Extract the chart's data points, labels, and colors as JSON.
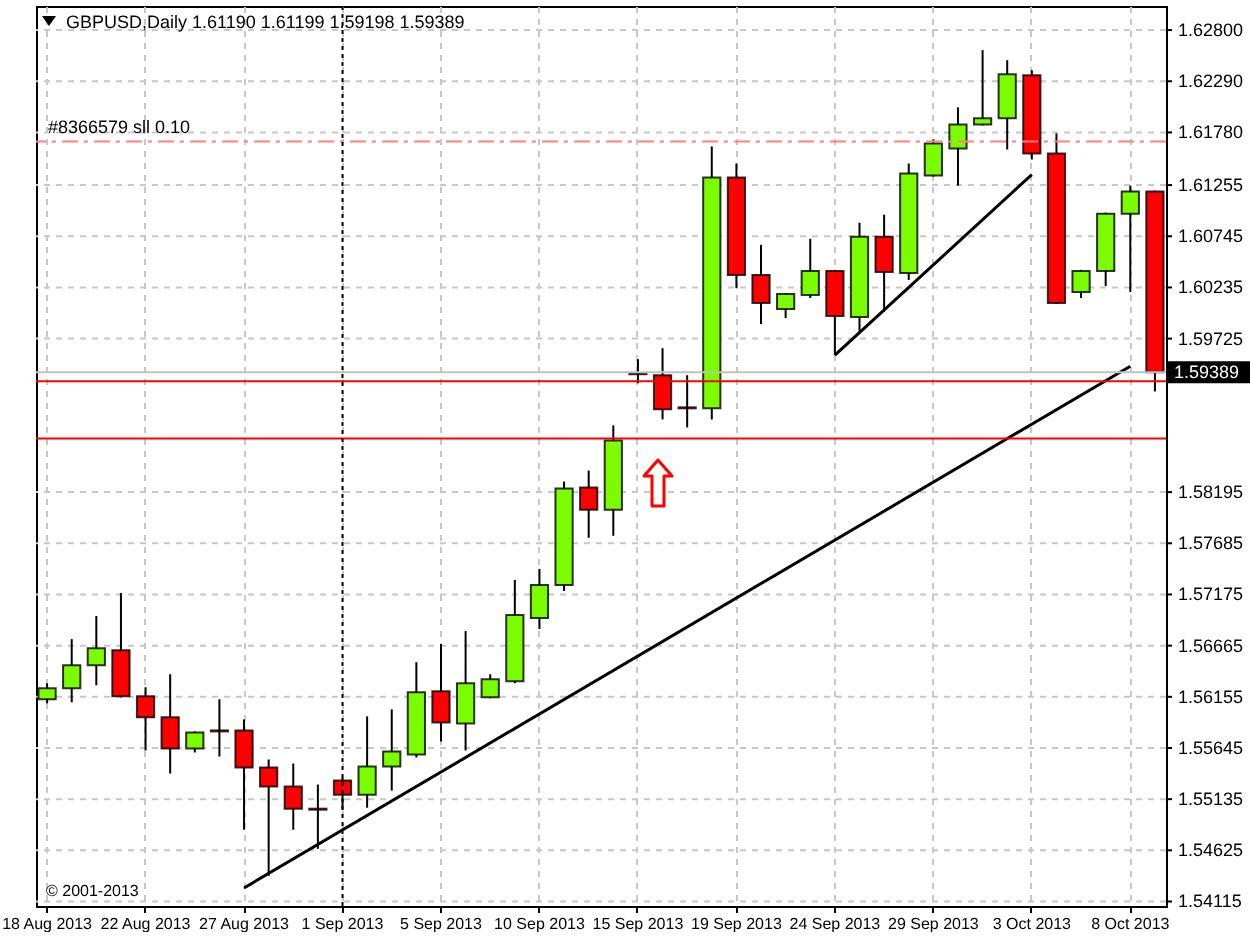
{
  "chart_data": {
    "type": "candlestick",
    "title": "GBPUSD,Daily  1.61190 1.61199 1.59198 1.59389",
    "categories": [
      "18 Aug 2013",
      null,
      null,
      null,
      "22 Aug 2013",
      null,
      null,
      null,
      "27 Aug 2013",
      null,
      null,
      null,
      "1 Sep 2013",
      null,
      null,
      null,
      "5 Sep 2013",
      null,
      null,
      null,
      "10 Sep 2013",
      null,
      null,
      null,
      "15 Sep 2013",
      null,
      null,
      null,
      "19 Sep 2013",
      null,
      null,
      null,
      "24 Sep 2013",
      null,
      null,
      null,
      "29 Sep 2013",
      null,
      null,
      null,
      "3 Oct 2013",
      null,
      null,
      null,
      "8 Oct 2013",
      null
    ],
    "series": [
      {
        "type": "candlestick",
        "ohlc": [
          [
            1.5613,
            1.5629,
            1.5609,
            1.5624
          ],
          [
            1.5624,
            1.5673,
            1.561,
            1.5647
          ],
          [
            1.5647,
            1.5696,
            1.5627,
            1.5664
          ],
          [
            1.5662,
            1.5719,
            1.5615,
            1.5616
          ],
          [
            1.5616,
            1.5625,
            1.5562,
            1.5595
          ],
          [
            1.5595,
            1.5638,
            1.5539,
            1.5564
          ],
          [
            1.5564,
            1.5581,
            1.556,
            1.558
          ],
          [
            1.5582,
            1.5613,
            1.5556,
            1.5581
          ],
          [
            1.5582,
            1.5593,
            1.5483,
            1.5545
          ],
          [
            1.5545,
            1.5553,
            1.5437,
            1.5526
          ],
          [
            1.5526,
            1.5549,
            1.5483,
            1.5504
          ],
          [
            1.5504,
            1.5528,
            1.5464,
            1.5503
          ],
          [
            1.5532,
            1.5535,
            1.5503,
            1.5518
          ],
          [
            1.5518,
            1.5596,
            1.5505,
            1.5546
          ],
          [
            1.5546,
            1.5603,
            1.5522,
            1.5561
          ],
          [
            1.5558,
            1.565,
            1.5555,
            1.562
          ],
          [
            1.5621,
            1.5668,
            1.5571,
            1.559
          ],
          [
            1.5589,
            1.5681,
            1.5562,
            1.5629
          ],
          [
            1.5615,
            1.5638,
            1.5614,
            1.5633
          ],
          [
            1.5631,
            1.5732,
            1.5629,
            1.5697
          ],
          [
            1.5694,
            1.5743,
            1.5683,
            1.5727
          ],
          [
            1.5727,
            1.583,
            1.5721,
            1.5823
          ],
          [
            1.5824,
            1.5841,
            1.5774,
            1.5802
          ],
          [
            1.5802,
            1.5886,
            1.5776,
            1.5871
          ],
          [
            1.5938,
            1.5952,
            1.5928,
            1.5937
          ],
          [
            1.5936,
            1.5963,
            1.5892,
            1.5902
          ],
          [
            1.5904,
            1.5936,
            1.5884,
            1.5903
          ],
          [
            1.5903,
            1.6164,
            1.5892,
            1.6133
          ],
          [
            1.6133,
            1.6147,
            1.6023,
            1.6036
          ],
          [
            1.6036,
            1.6066,
            1.5987,
            1.6008
          ],
          [
            1.6002,
            1.6018,
            1.5993,
            1.6017
          ],
          [
            1.6016,
            1.6072,
            1.6013,
            1.604
          ],
          [
            1.604,
            1.6041,
            1.5956,
            1.5995
          ],
          [
            1.5994,
            1.6088,
            1.5978,
            1.6074
          ],
          [
            1.6074,
            1.6096,
            1.5999,
            1.6039
          ],
          [
            1.6038,
            1.6147,
            1.6031,
            1.6137
          ],
          [
            1.6135,
            1.6171,
            1.6134,
            1.6167
          ],
          [
            1.6162,
            1.6203,
            1.6125,
            1.6186
          ],
          [
            1.6186,
            1.626,
            1.6185,
            1.6192
          ],
          [
            1.6192,
            1.625,
            1.6161,
            1.6236
          ],
          [
            1.6235,
            1.624,
            1.6151,
            1.6157
          ],
          [
            1.6157,
            1.6177,
            1.6007,
            1.6008
          ],
          [
            1.6019,
            1.6041,
            1.6013,
            1.604
          ],
          [
            1.604,
            1.6098,
            1.6025,
            1.6097
          ],
          [
            1.6097,
            1.6125,
            1.6019,
            1.6119
          ],
          [
            1.6119,
            1.61199,
            1.59198,
            1.59389
          ]
        ],
        "colors": [
          "#7cfc00",
          "#7cfc00",
          "#7cfc00",
          "#ff0000",
          "#ff0000",
          "#ff0000",
          "#7cfc00",
          "#ff0000",
          "#ff0000",
          "#ff0000",
          "#ff0000",
          "#ff0000",
          "#ff0000",
          "#7cfc00",
          "#7cfc00",
          "#7cfc00",
          "#ff0000",
          "#7cfc00",
          "#7cfc00",
          "#7cfc00",
          "#7cfc00",
          "#7cfc00",
          "#ff0000",
          "#7cfc00",
          "#ff0000",
          "#ff0000",
          "#ff0000",
          "#7cfc00",
          "#ff0000",
          "#ff0000",
          "#7cfc00",
          "#7cfc00",
          "#ff0000",
          "#7cfc00",
          "#ff0000",
          "#7cfc00",
          "#7cfc00",
          "#7cfc00",
          "#7cfc00",
          "#7cfc00",
          "#ff0000",
          "#ff0000",
          "#7cfc00",
          "#7cfc00",
          "#7cfc00",
          "#ff0000"
        ]
      },
      {
        "type": "line",
        "x": [
          "27 Aug 2013",
          "8 Oct 2013"
        ],
        "values": [
          1.5425,
          1.5945
        ],
        "color": "#000000"
      },
      {
        "type": "line",
        "x": [
          "24 Sep 2013",
          "3 Oct 2013"
        ],
        "values": [
          1.5956,
          1.6136
        ],
        "color": "#000000"
      }
    ],
    "ylim": [
      1.5407,
      1.6304
    ],
    "yticks": [
      {
        "value": 1.628,
        "label": "1.62800"
      },
      {
        "value": 1.6229,
        "label": "1.62290"
      },
      {
        "value": 1.6178,
        "label": "1.61780"
      },
      {
        "value": 1.61255,
        "label": "1.61255"
      },
      {
        "value": 1.60745,
        "label": "1.60745"
      },
      {
        "value": 1.60235,
        "label": "1.60235"
      },
      {
        "value": 1.59725,
        "label": "1.59725"
      },
      {
        "value": 1.58195,
        "label": "1.58195"
      },
      {
        "value": 1.57685,
        "label": "1.57685"
      },
      {
        "value": 1.57175,
        "label": "1.57175"
      },
      {
        "value": 1.56665,
        "label": "1.56665"
      },
      {
        "value": 1.56155,
        "label": "1.56155"
      },
      {
        "value": 1.55645,
        "label": "1.55645"
      },
      {
        "value": 1.55135,
        "label": "1.55135"
      },
      {
        "value": 1.54625,
        "label": "1.54625"
      },
      {
        "value": 1.54115,
        "label": "1.54115"
      }
    ],
    "grid": true,
    "ref_lines": [
      {
        "axis": "y",
        "value": 1.6169,
        "label": "#8366579 sll 0.10",
        "color": "#ff8080",
        "line_style": "dashed"
      },
      {
        "axis": "y",
        "value": 1.59389,
        "label": "1.59389",
        "color": "#c0c0c0",
        "line_style": "solid"
      },
      {
        "axis": "y",
        "value": 1.593,
        "color": "#ff0000",
        "line_style": "solid"
      },
      {
        "axis": "y",
        "value": 1.5873,
        "color": "#ff0000",
        "line_style": "solid"
      },
      {
        "axis": "x",
        "value": "1 Sep 2013",
        "color": "#000000",
        "line_style": "dotted"
      }
    ],
    "annotations": [
      "© 2001-2013"
    ]
  }
}
